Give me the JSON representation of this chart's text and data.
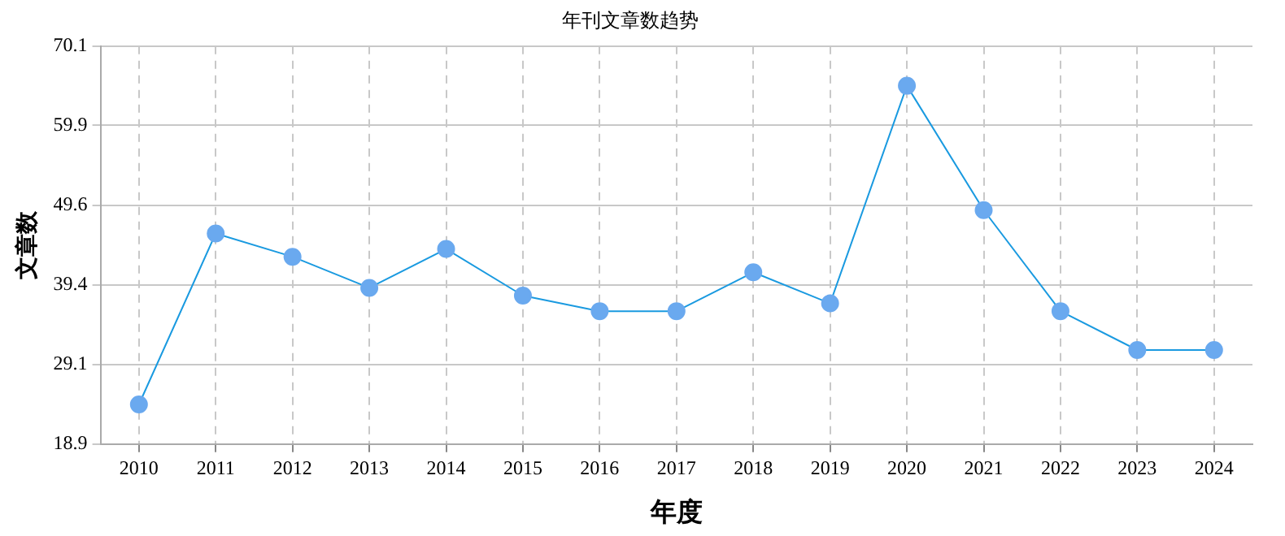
{
  "chart_data": {
    "type": "line",
    "title": "年刊文章数趋势",
    "xlabel": "年度",
    "ylabel": "文章数",
    "categories": [
      "2010",
      "2011",
      "2012",
      "2013",
      "2014",
      "2015",
      "2016",
      "2017",
      "2018",
      "2019",
      "2020",
      "2021",
      "2022",
      "2023",
      "2024"
    ],
    "series": [
      {
        "color": "#1a9ae0",
        "values": [
          24,
          46,
          43,
          39,
          44,
          38,
          36,
          36,
          41,
          37,
          65,
          49,
          36,
          31,
          31
        ]
      }
    ],
    "ylim": [
      18.9,
      70.1
    ],
    "yticks": [
      18.9,
      29.1,
      39.4,
      49.6,
      59.9,
      70.1
    ],
    "grid": true,
    "legend": false,
    "marker": "circle",
    "line_style": "solid"
  }
}
